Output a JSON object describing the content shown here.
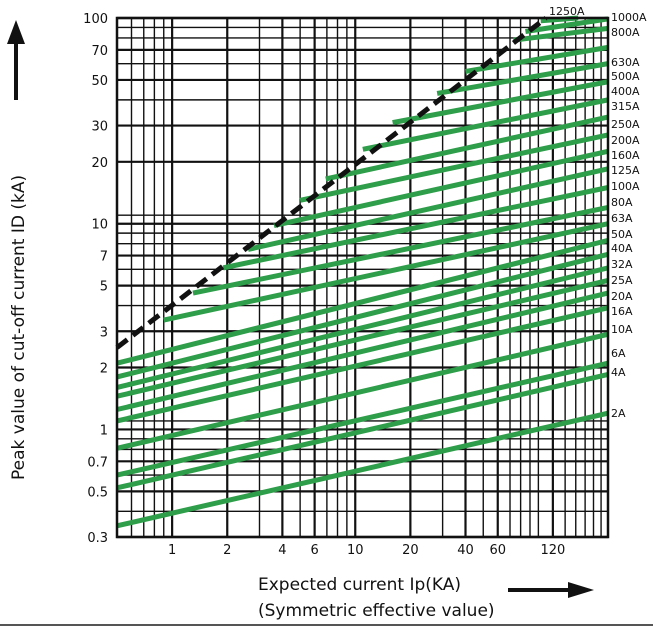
{
  "chart_data": {
    "type": "line",
    "title": "",
    "xlabel": "Expected current Ip(KA)",
    "xlabel_sub": "(Symmetric effective value)",
    "ylabel": "Peak value of cut-off current ID (kA)",
    "xscale": "log",
    "yscale": "log",
    "xlim": [
      0.5,
      240
    ],
    "ylim": [
      0.3,
      100
    ],
    "x_ticks": [
      {
        "v": 1,
        "label": "1"
      },
      {
        "v": 2,
        "label": "2"
      },
      {
        "v": 4,
        "label": "4"
      },
      {
        "v": 6,
        "label": "6"
      },
      {
        "v": 10,
        "label": "10"
      },
      {
        "v": 20,
        "label": "20"
      },
      {
        "v": 40,
        "label": "40"
      },
      {
        "v": 60,
        "label": "60"
      },
      {
        "v": 120,
        "label": "120"
      }
    ],
    "y_ticks": [
      {
        "v": 0.3,
        "label": "0.3"
      },
      {
        "v": 0.5,
        "label": "0.5"
      },
      {
        "v": 0.7,
        "label": "0.7"
      },
      {
        "v": 1,
        "label": "1"
      },
      {
        "v": 2,
        "label": "2"
      },
      {
        "v": 3,
        "label": "3"
      },
      {
        "v": 5,
        "label": "5"
      },
      {
        "v": 7,
        "label": "7"
      },
      {
        "v": 10,
        "label": "10"
      },
      {
        "v": 20,
        "label": "20"
      },
      {
        "v": 30,
        "label": "30"
      },
      {
        "v": 50,
        "label": "50"
      },
      {
        "v": 70,
        "label": "70"
      },
      {
        "v": 100,
        "label": "100"
      }
    ],
    "grid": true,
    "limit_line": {
      "style": "dashed",
      "color": "#111111",
      "from": [
        0.5,
        2.5
      ],
      "to": [
        110,
        100
      ]
    },
    "series": [
      {
        "name": "2A",
        "from": [
          0.5,
          0.34
        ],
        "to": [
          240,
          1.2
        ]
      },
      {
        "name": "4A",
        "from": [
          0.5,
          0.52
        ],
        "to": [
          240,
          1.85
        ]
      },
      {
        "name": "6A",
        "from": [
          0.5,
          0.6
        ],
        "to": [
          240,
          2.1
        ]
      },
      {
        "name": "10A",
        "from": [
          0.5,
          0.81
        ],
        "to": [
          240,
          2.9
        ]
      },
      {
        "name": "16A",
        "from": [
          0.5,
          1.1
        ],
        "to": [
          240,
          3.9
        ]
      },
      {
        "name": "20A",
        "from": [
          0.5,
          1.25
        ],
        "to": [
          240,
          4.6
        ]
      },
      {
        "name": "25A",
        "from": [
          0.5,
          1.45
        ],
        "to": [
          240,
          5.3
        ]
      },
      {
        "name": "32A",
        "from": [
          0.5,
          1.6
        ],
        "to": [
          240,
          6.1
        ]
      },
      {
        "name": "40A",
        "from": [
          0.5,
          1.8
        ],
        "to": [
          240,
          7.1
        ]
      },
      {
        "name": "50A",
        "from": [
          0.5,
          2.1
        ],
        "to": [
          240,
          8.3
        ]
      },
      {
        "name": "63A",
        "from": [
          0.9,
          3.4
        ],
        "to": [
          240,
          10
        ]
      },
      {
        "name": "80A",
        "from": [
          1.3,
          4.6
        ],
        "to": [
          240,
          12
        ]
      },
      {
        "name": "100A",
        "from": [
          1.9,
          6.1
        ],
        "to": [
          240,
          15
        ]
      },
      {
        "name": "125A",
        "from": [
          2.6,
          7.5
        ],
        "to": [
          240,
          18.5
        ]
      },
      {
        "name": "160A",
        "from": [
          3.6,
          9.8
        ],
        "to": [
          240,
          22.5
        ]
      },
      {
        "name": "200A",
        "from": [
          5.0,
          13.0
        ],
        "to": [
          240,
          27
        ]
      },
      {
        "name": "250A",
        "from": [
          6.9,
          16.5
        ],
        "to": [
          240,
          33
        ]
      },
      {
        "name": "315A",
        "from": [
          11,
          23
        ],
        "to": [
          240,
          40
        ]
      },
      {
        "name": "400A",
        "from": [
          16,
          31
        ],
        "to": [
          240,
          49
        ]
      },
      {
        "name": "500A",
        "from": [
          28,
          43
        ],
        "to": [
          240,
          60
        ]
      },
      {
        "name": "630A",
        "from": [
          40,
          55
        ],
        "to": [
          240,
          72
        ]
      },
      {
        "name": "800A",
        "from": [
          73,
          78
        ],
        "to": [
          240,
          89
        ]
      },
      {
        "name": "1000A",
        "from": [
          85,
          86
        ],
        "to": [
          240,
          99
        ]
      },
      {
        "name": "1250A",
        "from": [
          103,
          97
        ],
        "to": [
          165,
          100
        ]
      }
    ],
    "line_color": "#2e9e4a",
    "grid_color": "#111111"
  }
}
